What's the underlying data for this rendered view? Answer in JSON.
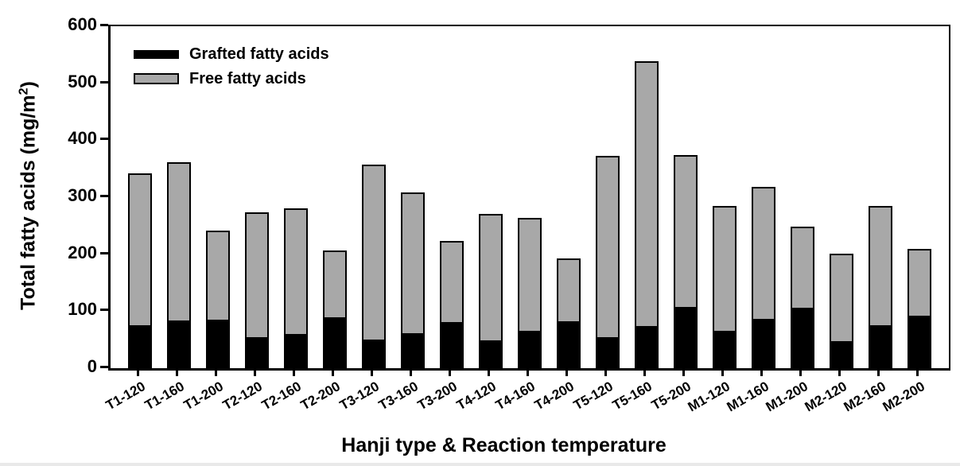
{
  "figure": {
    "background": "#ffffff",
    "text_color": "#000000"
  },
  "chart_data": {
    "type": "bar",
    "stacked": true,
    "title": "",
    "xlabel": "Hanji type & Reaction temperature",
    "ylabel": "Total fatty acids (mg/m2)",
    "ylabel_parts": {
      "main": "Total fatty acids (mg/m",
      "sup": "2",
      "close": ")"
    },
    "ylim": [
      0,
      600
    ],
    "ytick_step": 100,
    "ytick_labels": [
      "0",
      "100",
      "200",
      "300",
      "400",
      "500",
      "600"
    ],
    "grid": false,
    "legend_position": "top-left-inside",
    "categories": [
      "T1-120",
      "T1-160",
      "T1-200",
      "T2-120",
      "T2-160",
      "T2-200",
      "T3-120",
      "T3-160",
      "T3-200",
      "T4-120",
      "T4-160",
      "T4-200",
      "T5-120",
      "T5-160",
      "T5-200",
      "M1-120",
      "M1-160",
      "M1-200",
      "M2-120",
      "M2-160",
      "M2-200"
    ],
    "series": [
      {
        "name": "Grafted fatty acids",
        "color": "#000000",
        "values": [
          73,
          81,
          83,
          52,
          57,
          86,
          48,
          58,
          78,
          46,
          63,
          79,
          52,
          71,
          104,
          63,
          84,
          103,
          45,
          73,
          90
        ]
      },
      {
        "name": "Free fatty acids",
        "color": "#a8a8a8",
        "values": [
          269,
          280,
          159,
          221,
          223,
          120,
          309,
          250,
          145,
          225,
          201,
          113,
          320,
          467,
          270,
          222,
          234,
          146,
          156,
          212,
          119
        ]
      }
    ],
    "totals": [
      342,
      361,
      242,
      273,
      280,
      206,
      357,
      308,
      223,
      271,
      264,
      192,
      372,
      538,
      374,
      285,
      318,
      249,
      201,
      285,
      209
    ]
  }
}
